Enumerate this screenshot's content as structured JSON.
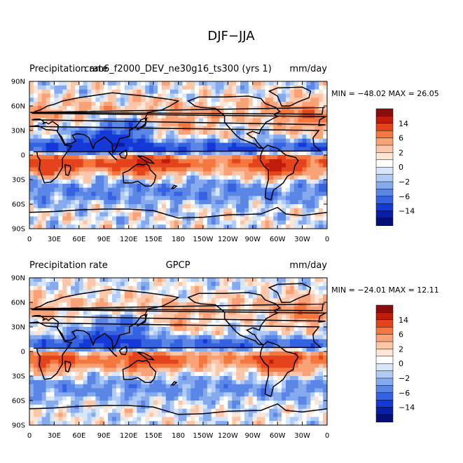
{
  "figure": {
    "title": "DJF−JJA"
  },
  "chart_data": [
    {
      "type": "heatmap",
      "title": "cam6_f2000_DEV_ne30g16_ts300 (yrs 1)",
      "left_label": "Precipitation rate",
      "units": "mm/day",
      "stats": "MIN = −48.02 MAX =  26.05",
      "x_ticks": [
        "0",
        "30E",
        "60E",
        "90E",
        "120E",
        "150E",
        "180",
        "150W",
        "120W",
        "90W",
        "60W",
        "30W",
        "0"
      ],
      "y_ticks": [
        "90N",
        "60N",
        "30N",
        "0",
        "30S",
        "60S",
        "90S"
      ],
      "xlim": [
        0,
        360
      ],
      "ylim": [
        -90,
        90
      ]
    },
    {
      "type": "heatmap",
      "title": "GPCP",
      "left_label": "Precipitation rate",
      "units": "mm/day",
      "stats": "MIN = −24.01 MAX =  12.11",
      "x_ticks": [
        "0",
        "30E",
        "60E",
        "90E",
        "120E",
        "150E",
        "180",
        "150W",
        "120W",
        "90W",
        "60W",
        "30W",
        "0"
      ],
      "y_ticks": [
        "90N",
        "60N",
        "30N",
        "0",
        "30S",
        "60S",
        "90S"
      ],
      "xlim": [
        0,
        360
      ],
      "ylim": [
        -90,
        90
      ]
    }
  ],
  "colorbar": {
    "labels": [
      "14",
      "6",
      "2",
      "0",
      "−2",
      "−6",
      "−14"
    ],
    "colors": [
      "#8b0d0d",
      "#c01c0c",
      "#e4431c",
      "#f5773e",
      "#f9a278",
      "#fcc6a8",
      "#fde6d6",
      "#ffffff",
      "#d6e6fb",
      "#b0cbf5",
      "#86aaee",
      "#5b86e6",
      "#3562e0",
      "#1539d6",
      "#0a1da8",
      "#040f78"
    ]
  }
}
